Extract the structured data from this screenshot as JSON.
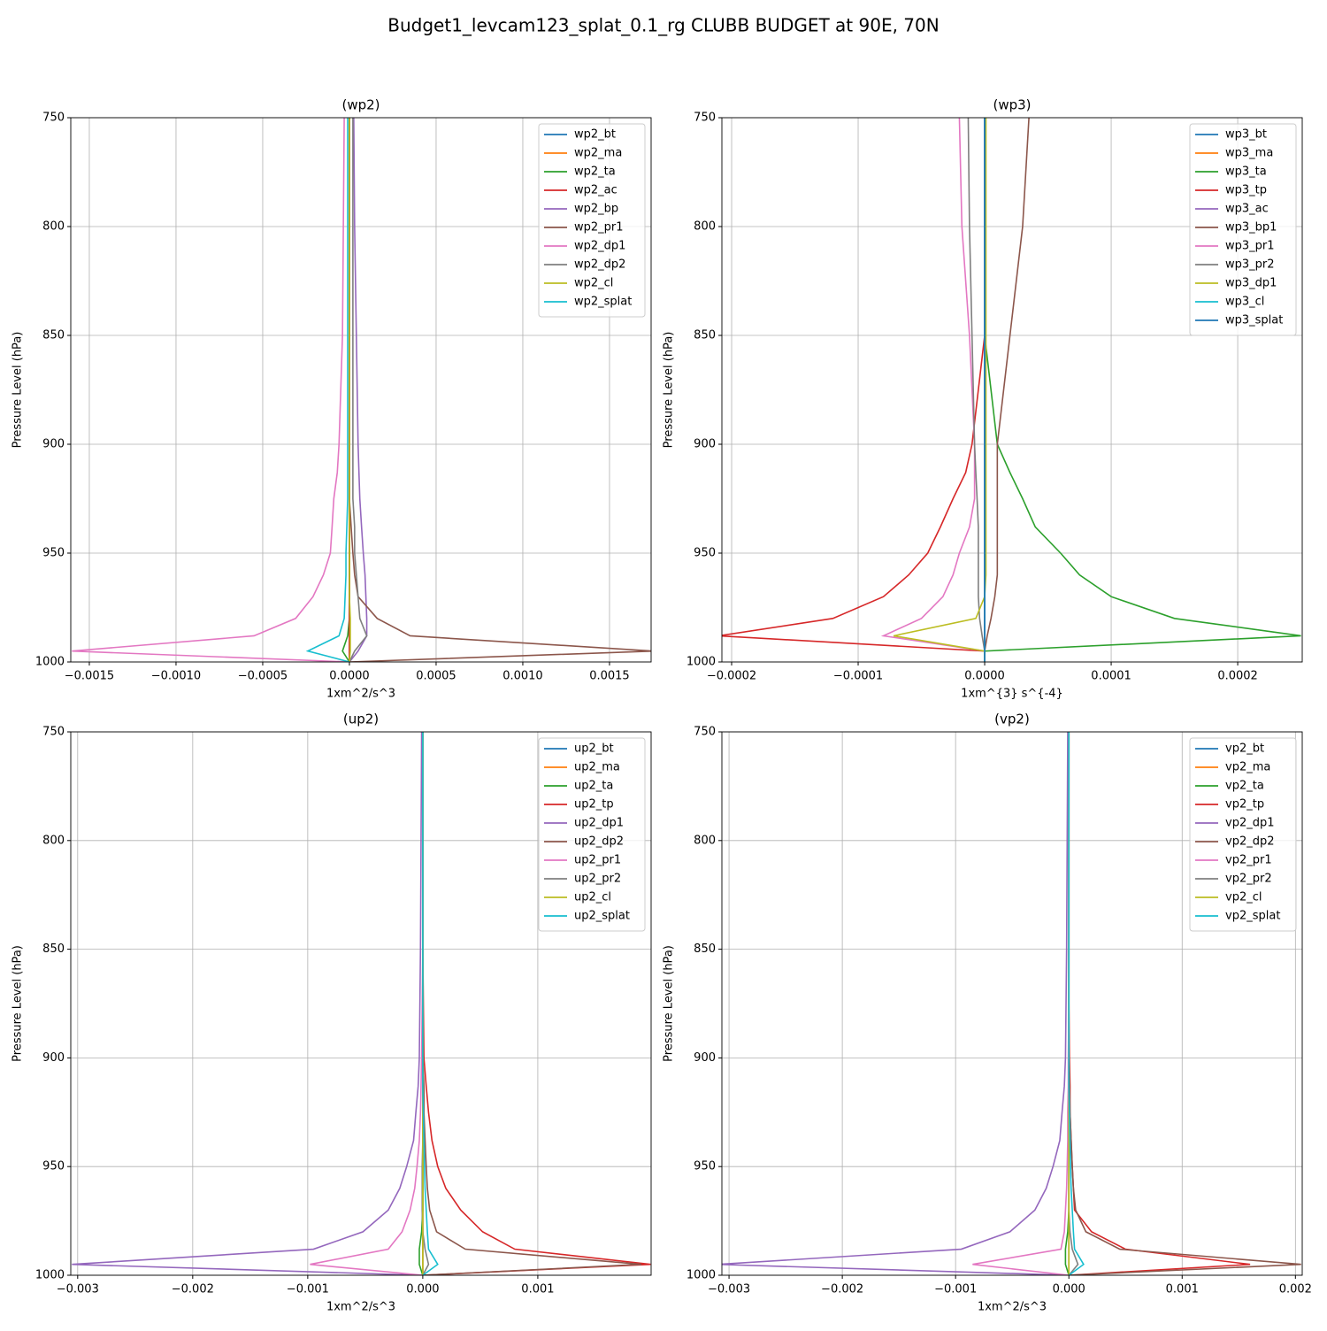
{
  "title": "Budget1_levcam123_splat_0.1_rg CLUBB BUDGET at 90E, 70N",
  "chart_data": [
    {
      "type": "line",
      "title": "(wp2)",
      "xlabel": "1xm^2/s^3",
      "ylabel": "Pressure Level (hPa)",
      "grid": true,
      "legend": "upper right",
      "y": [
        750,
        800,
        850,
        875,
        900,
        913,
        925,
        938,
        950,
        960,
        970,
        980,
        988,
        995,
        1000
      ],
      "ylim": [
        1000,
        750
      ],
      "yticks": [
        750,
        800,
        850,
        900,
        950,
        1000
      ],
      "xlim": [
        -0.001607,
        0.00174
      ],
      "xticks": [
        {
          "value": -0.0015,
          "label": "−0.0015"
        },
        {
          "value": -0.001,
          "label": "−0.0010"
        },
        {
          "value": -0.0005,
          "label": "−0.0005"
        },
        {
          "value": 0,
          "label": "0.0000"
        },
        {
          "value": 0.0005,
          "label": "0.0005"
        },
        {
          "value": 0.001,
          "label": "0.0010"
        },
        {
          "value": 0.0015,
          "label": "0.0015"
        }
      ],
      "series": [
        {
          "name": "wp2_bt",
          "color": "#1f77b4",
          "values": [
            0,
            0,
            0,
            0,
            0,
            0,
            0,
            0,
            0,
            0,
            0,
            0,
            0,
            0,
            0
          ]
        },
        {
          "name": "wp2_ma",
          "color": "#ff7f0e",
          "values": [
            0,
            0,
            0,
            0,
            0,
            0,
            0,
            0,
            0,
            0,
            0,
            0,
            0,
            0,
            0
          ]
        },
        {
          "name": "wp2_ta",
          "color": "#2ca02c",
          "values": [
            0,
            0,
            0,
            0,
            0,
            0,
            0,
            0,
            0,
            0,
            0,
            0,
            -1e-05,
            -4e-05,
            0
          ]
        },
        {
          "name": "wp2_ac",
          "color": "#d62728",
          "values": [
            0,
            0,
            0,
            0,
            0,
            0,
            0,
            0,
            0,
            0,
            0,
            0,
            0,
            0,
            0
          ]
        },
        {
          "name": "wp2_bp",
          "color": "#9467bd",
          "values": [
            2.5e-05,
            3e-05,
            4e-05,
            4.5e-05,
            5e-05,
            5.5e-05,
            6e-05,
            7e-05,
            8e-05,
            9e-05,
            9.5e-05,
            0.0001,
            0.0001,
            5e-05,
            0
          ]
        },
        {
          "name": "wp2_pr1",
          "color": "#8c564b",
          "values": [
            0,
            0,
            0,
            0,
            0,
            0,
            0,
            1e-05,
            2e-05,
            3e-05,
            5e-05,
            0.00016,
            0.00035,
            0.00175,
            0
          ]
        },
        {
          "name": "wp2_dp1",
          "color": "#e377c2",
          "values": [
            -3e-05,
            -3.5e-05,
            -4e-05,
            -5e-05,
            -6e-05,
            -7e-05,
            -9e-05,
            -0.0001,
            -0.00011,
            -0.00015,
            -0.00021,
            -0.00031,
            -0.00055,
            -0.0016,
            0
          ]
        },
        {
          "name": "wp2_dp2",
          "color": "#7f7f7f",
          "values": [
            2e-05,
            2e-05,
            2e-05,
            2e-05,
            2e-05,
            2e-05,
            2e-05,
            3e-05,
            3e-05,
            4e-05,
            5e-05,
            6e-05,
            0.0001,
            3e-05,
            0
          ]
        },
        {
          "name": "wp2_cl",
          "color": "#bcbd22",
          "values": [
            0,
            0,
            0,
            0,
            0,
            0,
            0,
            0,
            0,
            0,
            0,
            5e-06,
            5e-06,
            5e-06,
            0
          ]
        },
        {
          "name": "wp2_splat",
          "color": "#17becf",
          "values": [
            -1e-05,
            -1e-05,
            -1e-05,
            -1e-05,
            -1e-05,
            -1e-05,
            -1e-05,
            -1.5e-05,
            -2e-05,
            -2e-05,
            -2.5e-05,
            -3e-05,
            -6e-05,
            -0.00024,
            0
          ]
        }
      ]
    },
    {
      "type": "line",
      "title": "(wp3)",
      "xlabel": "1xm^{3} s^{-4}",
      "ylabel": "Pressure Level (hPa)",
      "grid": true,
      "legend": "upper right",
      "y": [
        750,
        800,
        850,
        875,
        900,
        913,
        925,
        938,
        950,
        960,
        970,
        980,
        988,
        995,
        1000
      ],
      "ylim": [
        1000,
        750
      ],
      "yticks": [
        750,
        800,
        850,
        900,
        950,
        1000
      ],
      "xlim": [
        -0.0002077,
        0.000251
      ],
      "xticks": [
        {
          "value": -0.0002,
          "label": "−0.0002"
        },
        {
          "value": -0.0001,
          "label": "−0.0001"
        },
        {
          "value": 0,
          "label": "0.0000"
        },
        {
          "value": 0.0001,
          "label": "0.0001"
        },
        {
          "value": 0.0002,
          "label": "0.0002"
        }
      ],
      "series": [
        {
          "name": "wp3_bt",
          "color": "#1f77b4",
          "values": [
            0,
            0,
            0,
            0,
            0,
            0,
            0,
            0,
            0,
            0,
            0,
            0,
            0,
            0,
            0
          ]
        },
        {
          "name": "wp3_ma",
          "color": "#ff7f0e",
          "values": [
            0,
            0,
            0,
            0,
            0,
            0,
            0,
            0,
            0,
            0,
            0,
            0,
            0,
            0,
            0
          ]
        },
        {
          "name": "wp3_ta",
          "color": "#2ca02c",
          "values": [
            0,
            0,
            0,
            5e-06,
            1e-05,
            2e-05,
            3e-05,
            4e-05,
            6e-05,
            7.5e-05,
            0.0001,
            0.00015,
            0.00025,
            0,
            0
          ]
        },
        {
          "name": "wp3_tp",
          "color": "#d62728",
          "values": [
            0,
            0,
            0,
            -5e-06,
            -1e-05,
            -1.5e-05,
            -2.5e-05,
            -3.5e-05,
            -4.5e-05,
            -6e-05,
            -8e-05,
            -0.00012,
            -0.00021,
            0,
            0
          ]
        },
        {
          "name": "wp3_ac",
          "color": "#9467bd",
          "values": [
            0,
            0,
            0,
            0,
            0,
            0,
            0,
            0,
            0,
            0,
            0,
            0,
            0,
            0,
            0
          ]
        },
        {
          "name": "wp3_bp1",
          "color": "#8c564b",
          "values": [
            3.5e-05,
            3e-05,
            2e-05,
            1.5e-05,
            1e-05,
            1e-05,
            1e-05,
            1e-05,
            1e-05,
            1e-05,
            8e-06,
            5e-06,
            2e-06,
            0,
            0
          ]
        },
        {
          "name": "wp3_pr1",
          "color": "#e377c2",
          "values": [
            -2e-05,
            -1.8e-05,
            -1.2e-05,
            -1e-05,
            -8e-06,
            -8e-06,
            -8e-06,
            -1.2e-05,
            -2e-05,
            -2.5e-05,
            -3.3e-05,
            -5e-05,
            -8e-05,
            0,
            0
          ]
        },
        {
          "name": "wp3_pr2",
          "color": "#7f7f7f",
          "values": [
            -1.3e-05,
            -1.2e-05,
            -1e-05,
            -9e-06,
            -8e-06,
            -7e-06,
            -6e-06,
            -5e-06,
            -5e-06,
            -5e-06,
            -5e-06,
            -4e-06,
            -2e-06,
            0,
            0
          ]
        },
        {
          "name": "wp3_dp1",
          "color": "#bcbd22",
          "values": [
            1e-06,
            1e-06,
            1e-06,
            1e-06,
            1e-06,
            1e-06,
            1e-06,
            1e-06,
            1e-06,
            1e-06,
            0,
            -7e-06,
            -7.2e-05,
            0,
            0
          ]
        },
        {
          "name": "wp3_cl",
          "color": "#17becf",
          "values": [
            0,
            0,
            0,
            0,
            0,
            0,
            0,
            0,
            0,
            0,
            0,
            0,
            0,
            0,
            0
          ]
        },
        {
          "name": "wp3_splat",
          "color": "#1f77b4",
          "values": [
            0,
            0,
            0,
            0,
            0,
            0,
            0,
            0,
            0,
            0,
            0,
            0,
            0,
            0,
            0
          ]
        }
      ]
    },
    {
      "type": "line",
      "title": "(up2)",
      "xlabel": "1xm^2/s^3",
      "ylabel": "Pressure Level (hPa)",
      "grid": true,
      "legend": "upper right",
      "y": [
        750,
        800,
        850,
        875,
        900,
        913,
        925,
        938,
        950,
        960,
        970,
        980,
        988,
        995,
        1000
      ],
      "ylim": [
        1000,
        750
      ],
      "yticks": [
        750,
        800,
        850,
        900,
        950,
        1000
      ],
      "xlim": [
        -0.00306,
        0.001985
      ],
      "xticks": [
        {
          "value": -0.003,
          "label": "−0.003"
        },
        {
          "value": -0.002,
          "label": "−0.002"
        },
        {
          "value": -0.001,
          "label": "−0.001"
        },
        {
          "value": 0,
          "label": "0.000"
        },
        {
          "value": 0.001,
          "label": "0.001"
        }
      ],
      "series": [
        {
          "name": "up2_bt",
          "color": "#1f77b4",
          "values": [
            0,
            0,
            0,
            0,
            0,
            0,
            0,
            0,
            0,
            0,
            0,
            0,
            0,
            0,
            0
          ]
        },
        {
          "name": "up2_ma",
          "color": "#ff7f0e",
          "values": [
            0,
            0,
            0,
            0,
            0,
            0,
            0,
            0,
            0,
            0,
            0,
            0,
            0,
            0,
            0
          ]
        },
        {
          "name": "up2_ta",
          "color": "#2ca02c",
          "values": [
            0,
            0,
            0,
            0,
            0,
            0,
            0,
            0,
            0,
            0,
            0,
            -1e-05,
            -3e-05,
            -3e-05,
            0
          ]
        },
        {
          "name": "up2_tp",
          "color": "#d62728",
          "values": [
            0,
            0,
            0,
            5e-06,
            1e-05,
            3e-05,
            5e-05,
            8e-05,
            0.00013,
            0.0002,
            0.00033,
            0.00052,
            0.0008,
            0.00198,
            0
          ]
        },
        {
          "name": "up2_dp1",
          "color": "#9467bd",
          "values": [
            -1e-05,
            -1.5e-05,
            -2e-05,
            -2.5e-05,
            -3e-05,
            -4e-05,
            -6e-05,
            -8e-05,
            -0.00014,
            -0.0002,
            -0.0003,
            -0.00052,
            -0.00095,
            -0.00305,
            0
          ]
        },
        {
          "name": "up2_dp2",
          "color": "#8c564b",
          "values": [
            0,
            0,
            0,
            0,
            0,
            1e-05,
            1e-05,
            2e-05,
            3e-05,
            4e-05,
            6e-05,
            0.00012,
            0.00037,
            0.0019,
            0
          ]
        },
        {
          "name": "up2_pr1",
          "color": "#e377c2",
          "values": [
            0,
            0,
            0,
            -5e-06,
            -1e-05,
            -1.5e-05,
            -2e-05,
            -3e-05,
            -5e-05,
            -7e-05,
            -0.00011,
            -0.00018,
            -0.0003,
            -0.00098,
            0
          ]
        },
        {
          "name": "up2_pr2",
          "color": "#7f7f7f",
          "values": [
            0,
            0,
            0,
            0,
            0,
            0,
            0,
            0,
            -5e-06,
            -5e-06,
            -5e-06,
            0,
            2e-05,
            5e-05,
            0
          ]
        },
        {
          "name": "up2_cl",
          "color": "#bcbd22",
          "values": [
            0,
            0,
            0,
            0,
            0,
            0,
            0,
            0,
            0,
            0,
            0,
            0,
            0,
            0,
            0
          ]
        },
        {
          "name": "up2_splat",
          "color": "#17becf",
          "values": [
            0,
            0,
            0,
            0,
            0,
            0,
            5e-06,
            1e-05,
            1.5e-05,
            2e-05,
            3e-05,
            4e-05,
            5e-05,
            0.00013,
            0
          ]
        }
      ]
    },
    {
      "type": "line",
      "title": "(vp2)",
      "xlabel": "1xm^2/s^3",
      "ylabel": "Pressure Level (hPa)",
      "grid": true,
      "legend": "upper right",
      "y": [
        750,
        800,
        850,
        875,
        900,
        913,
        925,
        938,
        950,
        960,
        970,
        980,
        988,
        995,
        1000
      ],
      "ylim": [
        1000,
        750
      ],
      "yticks": [
        750,
        800,
        850,
        900,
        950,
        1000
      ],
      "xlim": [
        -0.003063,
        0.00206
      ],
      "xticks": [
        {
          "value": -0.003,
          "label": "−0.003"
        },
        {
          "value": -0.002,
          "label": "−0.002"
        },
        {
          "value": -0.001,
          "label": "−0.001"
        },
        {
          "value": 0,
          "label": "0.000"
        },
        {
          "value": 0.001,
          "label": "0.001"
        },
        {
          "value": 0.002,
          "label": "0.002"
        }
      ],
      "series": [
        {
          "name": "vp2_bt",
          "color": "#1f77b4",
          "values": [
            0,
            0,
            0,
            0,
            0,
            0,
            0,
            0,
            0,
            0,
            0,
            0,
            0,
            0,
            0
          ]
        },
        {
          "name": "vp2_ma",
          "color": "#ff7f0e",
          "values": [
            0,
            0,
            0,
            0,
            0,
            0,
            0,
            0,
            0,
            0,
            0,
            0,
            0,
            0,
            0
          ]
        },
        {
          "name": "vp2_ta",
          "color": "#2ca02c",
          "values": [
            0,
            0,
            0,
            0,
            0,
            0,
            0,
            0,
            0,
            0,
            0,
            -1e-05,
            -3e-05,
            -3e-05,
            0
          ]
        },
        {
          "name": "vp2_tp",
          "color": "#d62728",
          "values": [
            0,
            0,
            0,
            0,
            5e-06,
            1e-05,
            1e-05,
            2e-05,
            3e-05,
            4e-05,
            5e-05,
            0.0002,
            0.0005,
            0.0016,
            0
          ]
        },
        {
          "name": "vp2_dp1",
          "color": "#9467bd",
          "values": [
            -1e-05,
            -1.5e-05,
            -2e-05,
            -2.5e-05,
            -3e-05,
            -4e-05,
            -6e-05,
            -8e-05,
            -0.00014,
            -0.0002,
            -0.0003,
            -0.00052,
            -0.00095,
            -0.0031,
            0
          ]
        },
        {
          "name": "vp2_dp2",
          "color": "#8c564b",
          "values": [
            0,
            0,
            0,
            0,
            0,
            5e-06,
            1e-05,
            2e-05,
            3e-05,
            4e-05,
            6e-05,
            0.00015,
            0.00045,
            0.00205,
            0
          ]
        },
        {
          "name": "vp2_pr1",
          "color": "#e377c2",
          "values": [
            0,
            0,
            0,
            0,
            -5e-06,
            -5e-06,
            -1e-05,
            -1e-05,
            -1.5e-05,
            -2e-05,
            -3e-05,
            -4e-05,
            -7e-05,
            -0.00085,
            0
          ]
        },
        {
          "name": "vp2_pr2",
          "color": "#7f7f7f",
          "values": [
            0,
            0,
            0,
            0,
            0,
            0,
            0,
            0,
            0,
            0,
            0,
            1e-05,
            3e-05,
            8e-05,
            0
          ]
        },
        {
          "name": "vp2_cl",
          "color": "#bcbd22",
          "values": [
            0,
            0,
            0,
            0,
            0,
            0,
            0,
            0,
            0,
            0,
            0,
            0,
            0,
            0,
            0
          ]
        },
        {
          "name": "vp2_splat",
          "color": "#17becf",
          "values": [
            0,
            0,
            0,
            0,
            0,
            0,
            5e-06,
            1e-05,
            1.5e-05,
            2e-05,
            3e-05,
            4e-05,
            5e-05,
            0.00013,
            0
          ]
        }
      ]
    }
  ]
}
